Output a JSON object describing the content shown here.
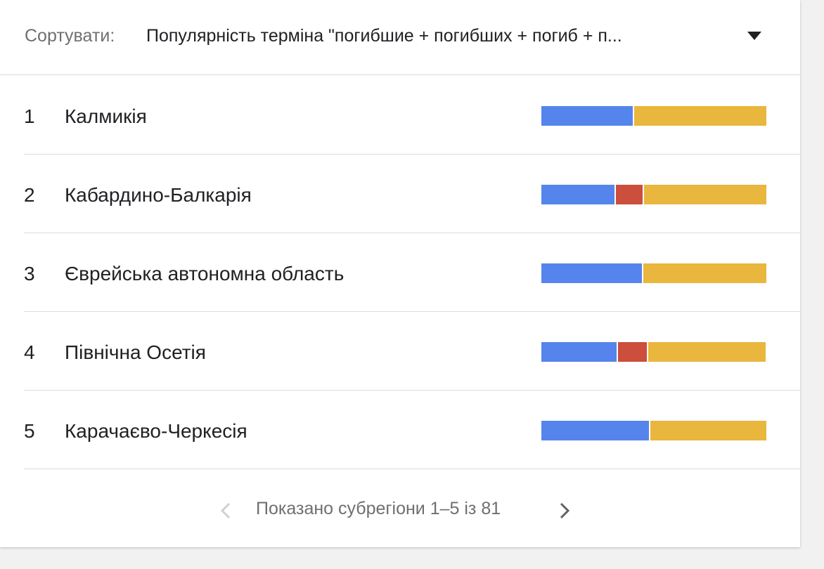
{
  "sort": {
    "label": "Сортувати:",
    "value": "Популярність терміна \"погибшие + погибших + погиб + п..."
  },
  "colors": {
    "blue": "#5585ec",
    "red": "#cc4e3c",
    "yellow": "#e9b73e"
  },
  "regions": [
    {
      "rank": "1",
      "name": "Калмикія",
      "shares": {
        "blue": 41,
        "red": 0,
        "yellow": 59
      }
    },
    {
      "rank": "2",
      "name": "Кабардино-Балкарія",
      "shares": {
        "blue": 33,
        "red": 12,
        "yellow": 55
      }
    },
    {
      "rank": "3",
      "name": "Єврейська автономна область",
      "shares": {
        "blue": 45,
        "red": 0,
        "yellow": 55
      }
    },
    {
      "rank": "4",
      "name": "Північна Осетія",
      "shares": {
        "blue": 34,
        "red": 13,
        "yellow": 53
      }
    },
    {
      "rank": "5",
      "name": "Карачаєво-Черкесія",
      "shares": {
        "blue": 48,
        "red": 0,
        "yellow": 52
      }
    }
  ],
  "pagination": {
    "text": "Показано субрегіони 1–5 із 81",
    "prev_icon": "chevron-left-icon",
    "next_icon": "chevron-right-icon"
  }
}
